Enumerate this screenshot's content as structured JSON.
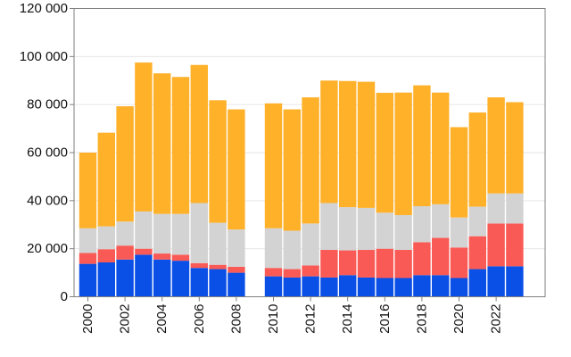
{
  "chart_data": {
    "type": "stacked-bar",
    "title": "",
    "xlabel": "",
    "ylabel": "",
    "ylim": [
      0,
      120000
    ],
    "yticks": [
      0,
      20000,
      40000,
      60000,
      80000,
      100000,
      120000
    ],
    "ytick_labels": [
      "0",
      "20 000",
      "40 000",
      "60 000",
      "80 000",
      "100 000",
      "120 000"
    ],
    "x_tick_labels": [
      "2000",
      "2002",
      "2004",
      "2006",
      "2008",
      "2010",
      "2012",
      "2014",
      "2016",
      "2018",
      "2020",
      "2022"
    ],
    "categories": [
      "2000",
      "2001",
      "2002",
      "2003",
      "2004",
      "2005",
      "2006",
      "2007",
      "2008",
      "2009",
      "2010",
      "2011",
      "2012",
      "2013",
      "2014",
      "2015",
      "2016",
      "2017",
      "2018",
      "2019",
      "2020",
      "2021",
      "2022",
      "2023"
    ],
    "grid": true,
    "series": [
      {
        "name": "blue",
        "color": "#0a4fe6",
        "values": [
          13700,
          14300,
          15500,
          17500,
          15500,
          15000,
          12000,
          11500,
          10000,
          null,
          8500,
          8000,
          8500,
          8000,
          9000,
          8000,
          7800,
          7800,
          9000,
          9000,
          7800,
          11500,
          12700,
          12700
        ]
      },
      {
        "name": "red",
        "color": "#fa5a55",
        "values": [
          4500,
          5500,
          5800,
          2500,
          2500,
          2500,
          2000,
          1800,
          2500,
          null,
          3500,
          3500,
          4500,
          11500,
          10300,
          11500,
          12200,
          11700,
          13700,
          15500,
          12700,
          13700,
          17800,
          17800
        ]
      },
      {
        "name": "gray",
        "color": "#d3d3d3",
        "values": [
          10300,
          9500,
          10000,
          15500,
          16500,
          17000,
          25000,
          17500,
          15500,
          null,
          16500,
          16000,
          17500,
          19500,
          18000,
          17500,
          15000,
          14500,
          15000,
          14000,
          12500,
          12300,
          12500,
          12500
        ]
      },
      {
        "name": "orange",
        "color": "#ffb12a",
        "values": [
          31500,
          39000,
          48000,
          62000,
          58500,
          57000,
          57500,
          51000,
          50000,
          null,
          52000,
          50500,
          52500,
          51000,
          52500,
          52500,
          49900,
          51000,
          50300,
          46500,
          37600,
          39200,
          40000,
          38000
        ]
      }
    ]
  }
}
